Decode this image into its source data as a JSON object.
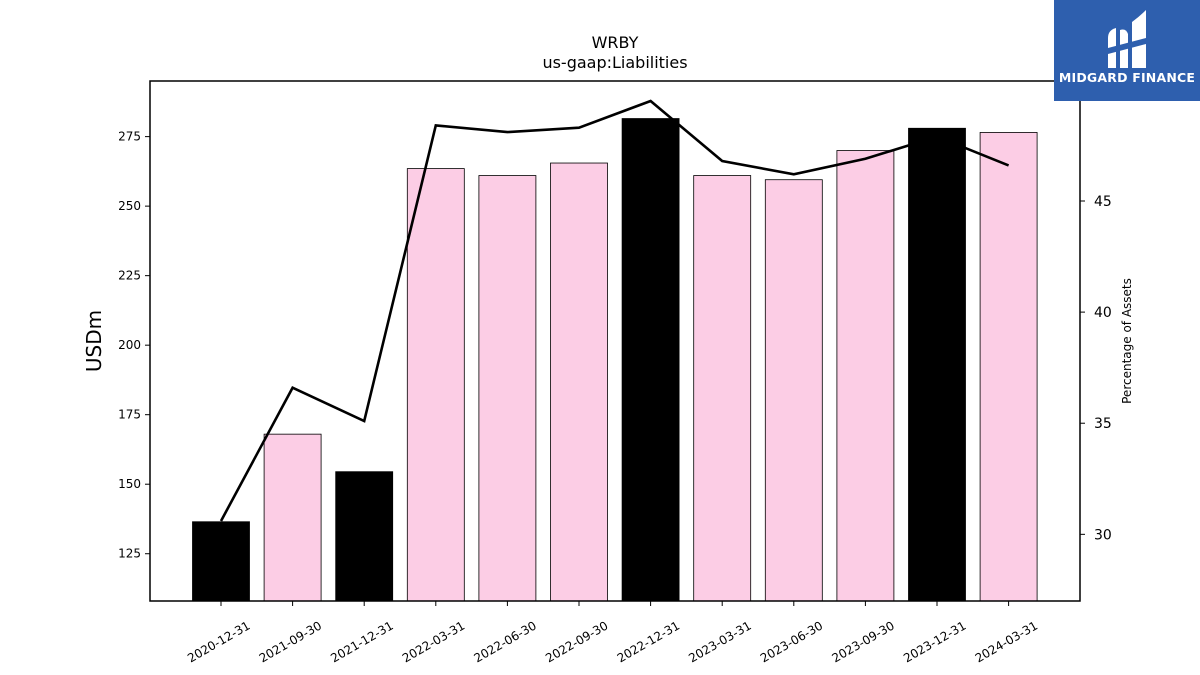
{
  "chart_data": {
    "type": "bar",
    "title": "WRBY",
    "subtitle": "us-gaap:Liabilities",
    "ylabel": "USDm",
    "y2label": "Percentage of Assets",
    "ylim": [
      108,
      295
    ],
    "y2lim": [
      27,
      50.4
    ],
    "yticks": [
      125,
      150,
      175,
      200,
      225,
      250,
      275
    ],
    "y2ticks": [
      30,
      35,
      40,
      45
    ],
    "categories": [
      "2020-12-31",
      "2021-09-30",
      "2021-12-31",
      "2022-03-31",
      "2022-06-30",
      "2022-09-30",
      "2022-12-31",
      "2023-03-31",
      "2023-06-30",
      "2023-09-30",
      "2023-12-31",
      "2024-03-31"
    ],
    "series": [
      {
        "kind": "bar",
        "values": [
          136.5,
          168,
          154.5,
          263.5,
          261,
          265.5,
          281.5,
          261,
          259.5,
          270,
          278,
          276.5
        ],
        "colors": [
          "#000000",
          "#fccde5",
          "#000000",
          "#fccde5",
          "#fccde5",
          "#fccde5",
          "#000000",
          "#fccde5",
          "#fccde5",
          "#fccde5",
          "#000000",
          "#fccde5"
        ]
      },
      {
        "kind": "line",
        "axis": "right",
        "color": "#000000",
        "values": [
          30.6,
          36.6,
          35.1,
          48.4,
          48.1,
          48.3,
          49.5,
          46.8,
          46.2,
          46.9,
          47.9,
          46.6
        ]
      }
    ],
    "grid": false,
    "legend": "none"
  },
  "logo": {
    "text": "MIDGARD FINANCE",
    "icon": "midgard-logo-icon",
    "color": "#2e5fae"
  }
}
